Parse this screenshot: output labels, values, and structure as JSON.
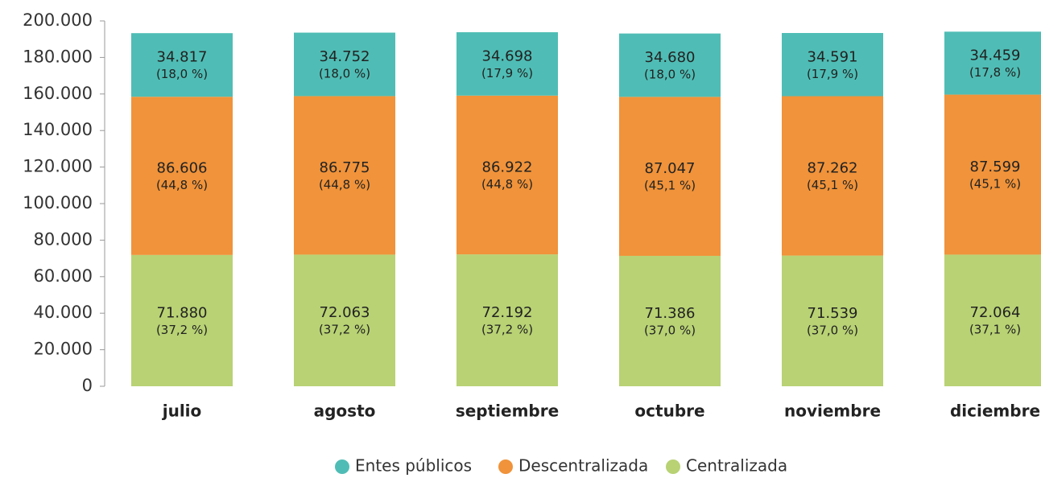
{
  "chart_data": {
    "type": "stacked_bar",
    "categories": [
      "julio",
      "agosto",
      "septiembre",
      "octubre",
      "noviembre",
      "diciembre"
    ],
    "series": [
      {
        "name": "Entes públicos",
        "color": "#4fbdb5",
        "values": [
          34817,
          34752,
          34698,
          34680,
          34591,
          34459
        ],
        "value_labels": [
          "34.817",
          "34.752",
          "34.698",
          "34.680",
          "34.591",
          "34.459"
        ],
        "percent_labels": [
          "(18,0 %)",
          "(18,0 %)",
          "(17,9 %)",
          "(18,0 %)",
          "(17,9 %)",
          "(17,8 %)"
        ]
      },
      {
        "name": "Descentralizada",
        "color": "#f0933a",
        "values": [
          86606,
          86775,
          86922,
          87047,
          87262,
          87599
        ],
        "value_labels": [
          "86.606",
          "86.775",
          "86.922",
          "87.047",
          "87.262",
          "87.599"
        ],
        "percent_labels": [
          "(44,8 %)",
          "(44,8 %)",
          "(44,8 %)",
          "(45,1 %)",
          "(45,1 %)",
          "(45,1 %)"
        ]
      },
      {
        "name": "Centralizada",
        "color": "#b8d274",
        "values": [
          71880,
          72063,
          72192,
          71386,
          71539,
          72064
        ],
        "value_labels": [
          "71.880",
          "72.063",
          "72.192",
          "71.386",
          "71.539",
          "72.064"
        ],
        "percent_labels": [
          "(37,2 %)",
          "(37,2 %)",
          "(37,2 %)",
          "(37,0 %)",
          "(37,0 %)",
          "(37,1 %)"
        ]
      }
    ],
    "ylim": [
      0,
      200000
    ],
    "yticks": [
      0,
      {
        "value": 20000,
        "label": "20.000"
      },
      {
        "value": 40000,
        "label": "40.000"
      },
      {
        "value": 60000,
        "label": "60.000"
      },
      {
        "value": 80000,
        "label": "80.000"
      },
      {
        "value": 100000,
        "label": "100.000"
      },
      {
        "value": 120000,
        "label": "120.000"
      },
      {
        "value": 140000,
        "label": "140.000"
      },
      {
        "value": 160000,
        "label": "160.000"
      },
      {
        "value": 180000,
        "label": "180.000"
      },
      {
        "value": 200000,
        "label": "200.000"
      }
    ],
    "grid": false
  }
}
